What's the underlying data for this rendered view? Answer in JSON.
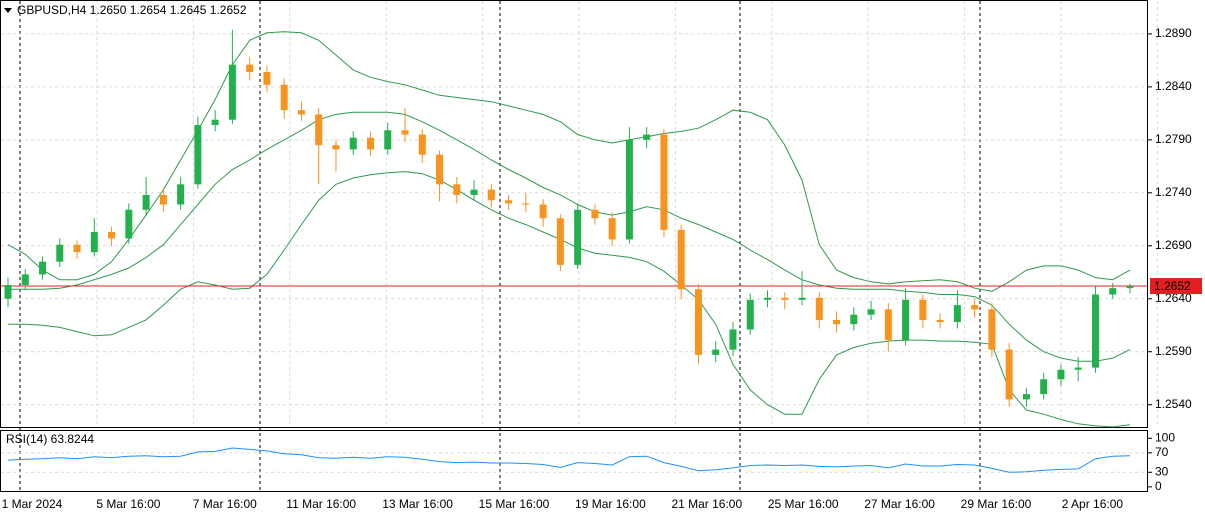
{
  "chart_data": [
    {
      "type": "candlestick",
      "title": "GBPUSD,H4  1.2650 1.2654 1.2645 1.2652",
      "up_color": "#22b14c",
      "down_color": "#f7931e",
      "open": [
        1.264,
        1.2653,
        1.2663,
        1.2675,
        1.2691,
        1.2684,
        1.2703,
        1.2697,
        1.2724,
        1.2738,
        1.2729,
        1.2748,
        1.2804,
        1.2809,
        1.2861,
        1.2854,
        1.2842,
        1.2818,
        1.2814,
        1.2785,
        1.2781,
        1.2792,
        1.2781,
        1.2799,
        1.2795,
        1.2776,
        1.2748,
        1.2738,
        1.2743,
        1.2733,
        1.273,
        1.2729,
        1.2716,
        1.2672,
        1.2724,
        1.2716,
        1.2696,
        1.279,
        1.2795,
        1.2705,
        1.2649,
        1.2587,
        1.2592,
        1.2611,
        1.2639,
        1.2641,
        1.2639,
        1.2641,
        1.262,
        1.2616,
        1.2625,
        1.263,
        1.2601,
        1.2639,
        1.262,
        1.2618,
        1.2634,
        1.263,
        1.2592,
        1.2545,
        1.255,
        1.2564,
        1.2573,
        1.2575,
        1.2644,
        1.265
      ],
      "high": [
        1.266,
        1.2668,
        1.268,
        1.2697,
        1.2695,
        1.2716,
        1.2708,
        1.273,
        1.2755,
        1.2745,
        1.2755,
        1.2812,
        1.2818,
        1.2894,
        1.2868,
        1.286,
        1.2848,
        1.2826,
        1.282,
        1.279,
        1.2798,
        1.2798,
        1.2806,
        1.282,
        1.28,
        1.278,
        1.2755,
        1.2752,
        1.2748,
        1.2738,
        1.274,
        1.2734,
        1.272,
        1.273,
        1.2729,
        1.2722,
        1.2802,
        1.2802,
        1.28,
        1.271,
        1.2654,
        1.26,
        1.2618,
        1.2645,
        1.2648,
        1.2646,
        1.2666,
        1.2646,
        1.2628,
        1.2632,
        1.2638,
        1.2636,
        1.265,
        1.2644,
        1.2626,
        1.2648,
        1.264,
        1.2636,
        1.2598,
        1.2556,
        1.257,
        1.2578,
        1.2585,
        1.2652,
        1.2655,
        1.2654
      ],
      "low": [
        1.2632,
        1.2648,
        1.2658,
        1.267,
        1.2678,
        1.268,
        1.269,
        1.2692,
        1.2718,
        1.2722,
        1.2724,
        1.2744,
        1.2798,
        1.2805,
        1.2846,
        1.2835,
        1.281,
        1.2808,
        1.2748,
        1.276,
        1.2776,
        1.2775,
        1.2776,
        1.2788,
        1.2768,
        1.2732,
        1.273,
        1.2733,
        1.2726,
        1.2724,
        1.2722,
        1.2708,
        1.2666,
        1.2668,
        1.271,
        1.269,
        1.2692,
        1.2782,
        1.2698,
        1.264,
        1.2578,
        1.258,
        1.2586,
        1.2606,
        1.2632,
        1.263,
        1.2634,
        1.2612,
        1.2608,
        1.261,
        1.262,
        1.259,
        1.2596,
        1.2612,
        1.2612,
        1.2612,
        1.2622,
        1.2585,
        1.2538,
        1.2538,
        1.2545,
        1.2558,
        1.2562,
        1.257,
        1.264,
        1.2645
      ],
      "close": [
        1.2653,
        1.2663,
        1.2675,
        1.2691,
        1.2684,
        1.2703,
        1.2697,
        1.2724,
        1.2738,
        1.2729,
        1.2748,
        1.2804,
        1.2809,
        1.2861,
        1.2854,
        1.2842,
        1.2818,
        1.2814,
        1.2785,
        1.2781,
        1.2792,
        1.2781,
        1.2799,
        1.2795,
        1.2776,
        1.2748,
        1.2738,
        1.2743,
        1.2733,
        1.273,
        1.2729,
        1.2716,
        1.2672,
        1.2724,
        1.2716,
        1.2696,
        1.279,
        1.2795,
        1.2705,
        1.2649,
        1.2587,
        1.2592,
        1.2611,
        1.2639,
        1.2641,
        1.2639,
        1.2641,
        1.262,
        1.2616,
        1.2625,
        1.263,
        1.2601,
        1.2639,
        1.262,
        1.2618,
        1.2634,
        1.263,
        1.2592,
        1.2545,
        1.255,
        1.2564,
        1.2573,
        1.2575,
        1.2644,
        1.265,
        1.2652
      ],
      "bollinger": {
        "color": "#2e9a4e",
        "upper": [
          1.2691,
          1.2682,
          1.2667,
          1.2658,
          1.2658,
          1.2663,
          1.2675,
          1.2696,
          1.2719,
          1.2743,
          1.2771,
          1.2799,
          1.2828,
          1.2861,
          1.2884,
          1.2891,
          1.2892,
          1.2891,
          1.2884,
          1.287,
          1.2856,
          1.2849,
          1.2845,
          1.2842,
          1.2837,
          1.2832,
          1.283,
          1.2828,
          1.2826,
          1.2822,
          1.2818,
          1.2814,
          1.2807,
          1.2795,
          1.279,
          1.2787,
          1.279,
          1.2793,
          1.2796,
          1.2798,
          1.2801,
          1.2809,
          1.2818,
          1.2816,
          1.2809,
          1.2785,
          1.2752,
          1.2691,
          1.2667,
          1.266,
          1.2656,
          1.2654,
          1.2656,
          1.2657,
          1.2658,
          1.2656,
          1.265,
          1.2647,
          1.2656,
          1.2667,
          1.2671,
          1.2671,
          1.2667,
          1.266,
          1.2658,
          1.2667
        ],
        "middle": [
          1.2649,
          1.2649,
          1.2649,
          1.265,
          1.2653,
          1.2658,
          1.2663,
          1.2669,
          1.2679,
          1.2691,
          1.271,
          1.2729,
          1.2748,
          1.2762,
          1.2771,
          1.2781,
          1.279,
          1.2799,
          1.2809,
          1.2814,
          1.2816,
          1.2816,
          1.2816,
          1.2814,
          1.2807,
          1.2799,
          1.279,
          1.2781,
          1.2771,
          1.2762,
          1.2754,
          1.2745,
          1.2738,
          1.2729,
          1.2722,
          1.2719,
          1.2722,
          1.2727,
          1.2724,
          1.2716,
          1.271,
          1.2703,
          1.2696,
          1.2686,
          1.2677,
          1.2667,
          1.2658,
          1.2653,
          1.265,
          1.2649,
          1.2649,
          1.2649,
          1.2647,
          1.2646,
          1.2644,
          1.2644,
          1.2642,
          1.2634,
          1.2616,
          1.2601,
          1.259,
          1.2584,
          1.2581,
          1.2581,
          1.2584,
          1.2592
        ],
        "lower": [
          1.2616,
          1.2616,
          1.2615,
          1.2613,
          1.2609,
          1.2605,
          1.2606,
          1.2613,
          1.262,
          1.2634,
          1.2649,
          1.2656,
          1.2653,
          1.2649,
          1.265,
          1.2663,
          1.2686,
          1.271,
          1.2733,
          1.2748,
          1.2754,
          1.2757,
          1.2759,
          1.276,
          1.2758,
          1.2752,
          1.2743,
          1.2733,
          1.2724,
          1.2716,
          1.271,
          1.2703,
          1.2696,
          1.2688,
          1.2683,
          1.2681,
          1.2679,
          1.2675,
          1.2666,
          1.2653,
          1.2639,
          1.2616,
          1.2578,
          1.2554,
          1.254,
          1.2531,
          1.2531,
          1.2564,
          1.2587,
          1.2594,
          1.2598,
          1.26,
          1.2601,
          1.2601,
          1.26,
          1.26,
          1.2599,
          1.2597,
          1.2554,
          1.2535,
          1.2531,
          1.2526,
          1.2522,
          1.252,
          1.2519,
          1.2521
        ]
      },
      "price_line": {
        "value": 1.2652,
        "color": "#e02020"
      },
      "ylim": [
        1.2518,
        1.2922
      ],
      "yticks": [
        {
          "value": 1.289,
          "label": "1.2890"
        },
        {
          "value": 1.284,
          "label": "1.2840"
        },
        {
          "value": 1.279,
          "label": "1.2790"
        },
        {
          "value": 1.274,
          "label": "1.2740"
        },
        {
          "value": 1.269,
          "label": "1.2690"
        },
        {
          "value": 1.264,
          "label": "1.2640"
        },
        {
          "value": 1.259,
          "label": "1.2590"
        },
        {
          "value": 1.254,
          "label": "1.2540"
        }
      ],
      "grid": true,
      "time_labels": [
        "1 Mar 2024",
        "5 Mar 16:00",
        "7 Mar 16:00",
        "11 Mar 16:00",
        "13 Mar 16:00",
        "15 Mar 16:00",
        "19 Mar 16:00",
        "21 Mar 16:00",
        "25 Mar 16:00",
        "27 Mar 16:00",
        "29 Mar 16:00",
        "2 Apr 16:00"
      ]
    },
    {
      "type": "line",
      "title": "RSI(14) 63.8244",
      "color": "#1e90ff",
      "values": [
        55,
        57,
        58,
        60,
        58,
        62,
        60,
        63,
        64,
        62,
        63,
        72,
        73,
        80,
        77,
        74,
        68,
        66,
        60,
        59,
        61,
        59,
        62,
        61,
        57,
        52,
        50,
        51,
        49,
        49,
        48,
        46,
        40,
        50,
        48,
        45,
        62,
        63,
        50,
        42,
        33,
        35,
        39,
        44,
        45,
        44,
        45,
        42,
        41,
        43,
        44,
        39,
        47,
        43,
        43,
        46,
        45,
        38,
        30,
        31,
        34,
        36,
        37,
        58,
        63,
        63.8244
      ],
      "ylim": [
        -10.6,
        117
      ],
      "yticks": [
        100,
        70,
        30,
        0
      ],
      "grid": true
    }
  ]
}
